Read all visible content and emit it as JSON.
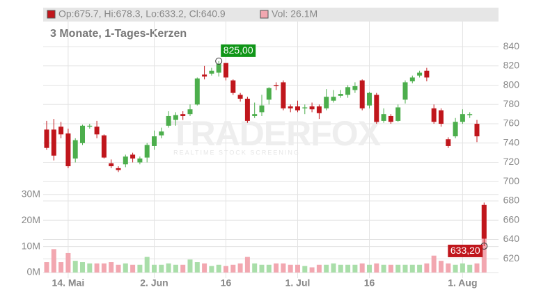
{
  "chart_data": {
    "type": "candlestick",
    "title": "3 Monate, 1-Tages-Kerzen",
    "watermark": {
      "brand": "TRADERFOX",
      "tagline": "REALTIME STOCK SCREENING"
    },
    "categories": [
      null,
      null,
      null,
      "14. Mai",
      null,
      null,
      null,
      null,
      null,
      null,
      null,
      null,
      null,
      null,
      null,
      "2. Jun",
      null,
      null,
      null,
      null,
      null,
      null,
      null,
      null,
      null,
      "16",
      null,
      null,
      null,
      null,
      null,
      null,
      null,
      null,
      null,
      "1. Jul",
      null,
      null,
      null,
      null,
      null,
      null,
      null,
      null,
      null,
      "16",
      null,
      null,
      null,
      null,
      null,
      null,
      null,
      null,
      null,
      null,
      null,
      null,
      "1. Aug",
      null,
      null,
      null
    ],
    "ohlc": {
      "name": "Op:675.7, Hi:678.3, Lo:633.2, Cl:640.9",
      "up_color": "#4cae4c",
      "down_color": "#c0161c",
      "open": [
        754,
        754,
        757,
        750,
        724,
        740,
        757,
        757,
        748,
        719,
        714,
        718,
        728,
        720,
        725,
        737,
        748,
        758,
        764,
        770,
        770,
        780,
        811,
        812,
        813,
        823,
        805,
        790,
        786,
        768,
        772,
        785,
        800,
        803,
        778,
        778,
        776,
        778,
        778,
        776,
        784,
        789,
        790,
        795,
        805,
        779,
        790,
        763,
        768,
        763,
        785,
        804,
        810,
        815,
        776,
        774,
        744,
        747,
        762,
        769,
        760,
        675.7
      ],
      "high": [
        763,
        765,
        762,
        755,
        745,
        759,
        760,
        763,
        749,
        723,
        716,
        728,
        730,
        726,
        740,
        753,
        756,
        773,
        772,
        773,
        780,
        808,
        820,
        818,
        825,
        823,
        806,
        792,
        788,
        782,
        790,
        798,
        803,
        805,
        780,
        784,
        780,
        782,
        780,
        796,
        795,
        795,
        800,
        803,
        806,
        793,
        792,
        776,
        770,
        780,
        805,
        810,
        815,
        818,
        780,
        776,
        746,
        766,
        775,
        772,
        764,
        678.3
      ],
      "low": [
        733,
        722,
        745,
        714,
        720,
        738,
        755,
        745,
        724,
        714,
        710,
        715,
        720,
        718,
        720,
        733,
        745,
        756,
        758,
        764,
        768,
        779,
        806,
        810,
        809,
        805,
        790,
        783,
        761,
        766,
        768,
        780,
        795,
        774,
        772,
        772,
        770,
        772,
        765,
        774,
        782,
        787,
        787,
        792,
        774,
        776,
        760,
        761,
        760,
        762,
        781,
        802,
        808,
        804,
        760,
        757,
        735,
        745,
        760,
        766,
        741,
        633.2
      ],
      "close": [
        735,
        727,
        749,
        716,
        743,
        758,
        758,
        749,
        725,
        716,
        712,
        726,
        724,
        724,
        738,
        747,
        752,
        768,
        769,
        768,
        775,
        807,
        809,
        815,
        822,
        808,
        792,
        786,
        763,
        770,
        779,
        797,
        799,
        776,
        776,
        774,
        777,
        775,
        771,
        788,
        788,
        791,
        798,
        799,
        776,
        792,
        762,
        770,
        762,
        777,
        803,
        808,
        813,
        808,
        762,
        760,
        737,
        762,
        770,
        770,
        747,
        640.9
      ]
    },
    "volume": {
      "name": "Vol: 26.1M",
      "axis": "y2",
      "up_color": "#a9dea9",
      "down_color": "#f2a7b0",
      "values": [
        4,
        9,
        4,
        7.5,
        4.5,
        4,
        3.5,
        3.5,
        3.5,
        4,
        3,
        3.5,
        3,
        3,
        6,
        3,
        3,
        3.5,
        3,
        3,
        5,
        4,
        3.5,
        2.5,
        3,
        2.5,
        3,
        3.5,
        6,
        3.5,
        3,
        3,
        3.5,
        3.5,
        3,
        3,
        2.5,
        2,
        3,
        3,
        3.5,
        3,
        3,
        3,
        3.5,
        3,
        3.5,
        3,
        3,
        3,
        3,
        3,
        3,
        3.5,
        6.5,
        4.5,
        3.5,
        3,
        3.5,
        3,
        3.5,
        26.1
      ]
    },
    "annotations": [
      {
        "field": "high",
        "value": 825,
        "label": "825,00",
        "color": "#109618"
      },
      {
        "field": "low",
        "value": 633.2,
        "label": "633,20",
        "color": "#c0161c"
      }
    ],
    "ylim": [
      600,
      866
    ],
    "yticks": [
      620,
      640,
      660,
      680,
      700,
      720,
      740,
      760,
      780,
      800,
      820,
      840
    ],
    "y2lim": [
      0,
      96.5
    ],
    "y2ticks": [
      {
        "value": 0,
        "label": "0M"
      },
      {
        "value": 10,
        "label": "10M"
      },
      {
        "value": 20,
        "label": "20M"
      },
      {
        "value": 30,
        "label": "30M"
      }
    ],
    "grid": true
  }
}
